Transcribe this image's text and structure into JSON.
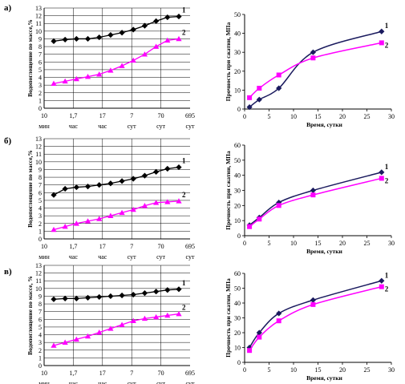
{
  "colors": {
    "series1": "#000000",
    "series2": "#ff00ff",
    "series1_strength": "#1a1a5e",
    "grid": "#000000"
  },
  "chart_data": [
    {
      "row_label": "а)",
      "type": "line",
      "ylabel": "Водопоглощение по массе,%",
      "ylim": [
        0,
        13
      ],
      "yticks": [
        0,
        1,
        2,
        3,
        4,
        5,
        6,
        7,
        8,
        9,
        10,
        11,
        12,
        13
      ],
      "xtick_values": [
        "10",
        "1,7",
        "17",
        "7",
        "70",
        "695"
      ],
      "xtick_units": [
        "мин",
        "час",
        "час",
        "сут",
        "сут",
        "сут"
      ],
      "series": [
        {
          "name": "1",
          "values": [
            8.7,
            8.9,
            9.0,
            9.0,
            9.2,
            9.5,
            9.8,
            10.2,
            10.7,
            11.3,
            11.8,
            11.9
          ]
        },
        {
          "name": "2",
          "values": [
            3.2,
            3.5,
            3.8,
            4.1,
            4.4,
            4.9,
            5.5,
            6.2,
            7.0,
            8.0,
            8.8,
            9.0
          ]
        }
      ],
      "grid": true
    },
    {
      "row_label": "а)",
      "type": "line",
      "ylabel": "Прочность при сжатии, МПа",
      "xlabel": "Время, сутки",
      "xlim": [
        0,
        30
      ],
      "ylim": [
        0,
        50
      ],
      "xticks": [
        0,
        5,
        10,
        15,
        20,
        25,
        30
      ],
      "yticks": [
        0,
        10,
        20,
        30,
        40,
        50
      ],
      "series": [
        {
          "name": "1",
          "x": [
            1,
            3,
            7,
            14,
            28
          ],
          "y": [
            1,
            5,
            11,
            30,
            41
          ]
        },
        {
          "name": "2",
          "x": [
            1,
            3,
            7,
            14,
            28
          ],
          "y": [
            6,
            11,
            18,
            27,
            35
          ]
        }
      ],
      "grid": false
    },
    {
      "row_label": "б)",
      "type": "line",
      "ylabel": "Водопоглощение по массе,%",
      "ylim": [
        0,
        13
      ],
      "yticks": [
        0,
        1,
        2,
        3,
        4,
        5,
        6,
        7,
        8,
        9,
        10,
        11,
        12,
        13
      ],
      "xtick_values": [
        "10",
        "1,7",
        "17",
        "7",
        "70",
        "695"
      ],
      "xtick_units": [
        "мин",
        "час",
        "час",
        "сут",
        "сут",
        "сут"
      ],
      "series": [
        {
          "name": "1",
          "values": [
            5.7,
            6.5,
            6.7,
            6.8,
            7.0,
            7.2,
            7.5,
            7.8,
            8.2,
            8.7,
            9.1,
            9.3
          ]
        },
        {
          "name": "2",
          "values": [
            1.2,
            1.6,
            2.0,
            2.3,
            2.6,
            3.0,
            3.4,
            3.8,
            4.3,
            4.7,
            4.8,
            4.9
          ]
        }
      ],
      "grid": true
    },
    {
      "row_label": "б)",
      "type": "line",
      "ylabel": "Прочность при сжатии, МПа",
      "xlabel": "Время, сутки",
      "xlim": [
        0,
        30
      ],
      "ylim": [
        0,
        60
      ],
      "xticks": [
        0,
        5,
        10,
        15,
        20,
        25,
        30
      ],
      "yticks": [
        0,
        10,
        20,
        30,
        40,
        50,
        60
      ],
      "series": [
        {
          "name": "1",
          "x": [
            1,
            3,
            7,
            14,
            28
          ],
          "y": [
            7,
            12,
            22,
            30,
            42
          ]
        },
        {
          "name": "2",
          "x": [
            1,
            3,
            7,
            14,
            28
          ],
          "y": [
            6,
            11,
            20,
            27,
            38
          ]
        }
      ],
      "grid": false
    },
    {
      "row_label": "в)",
      "type": "line",
      "ylabel": "Водопоглощение по массе, %",
      "ylim": [
        0,
        13
      ],
      "yticks": [
        0,
        1,
        2,
        3,
        4,
        5,
        6,
        7,
        8,
        9,
        10,
        11,
        12,
        13
      ],
      "xtick_values": [
        "10",
        "1,7",
        "17",
        "7",
        "70",
        "695"
      ],
      "xtick_units": [
        "мин",
        "час",
        "час",
        "сут",
        "сут",
        "сут"
      ],
      "series": [
        {
          "name": "1",
          "values": [
            8.6,
            8.7,
            8.7,
            8.8,
            8.9,
            9.0,
            9.1,
            9.2,
            9.4,
            9.6,
            9.8,
            9.9
          ]
        },
        {
          "name": "2",
          "values": [
            2.6,
            3.0,
            3.4,
            3.8,
            4.3,
            4.8,
            5.3,
            5.8,
            6.1,
            6.3,
            6.5,
            6.7
          ]
        }
      ],
      "grid": true
    },
    {
      "row_label": "в)",
      "type": "line",
      "ylabel": "Прочность при сжатии, МПа",
      "xlabel": "Время, сутки",
      "xlim": [
        0,
        30
      ],
      "ylim": [
        0,
        60
      ],
      "xticks": [
        0,
        5,
        10,
        15,
        20,
        25,
        30
      ],
      "yticks": [
        0,
        10,
        20,
        30,
        40,
        50,
        60
      ],
      "series": [
        {
          "name": "1",
          "x": [
            1,
            3,
            7,
            14,
            28
          ],
          "y": [
            10,
            20,
            33,
            42,
            55
          ]
        },
        {
          "name": "2",
          "x": [
            1,
            3,
            7,
            14,
            28
          ],
          "y": [
            8,
            17,
            28,
            39,
            51
          ]
        }
      ],
      "grid": false
    }
  ]
}
